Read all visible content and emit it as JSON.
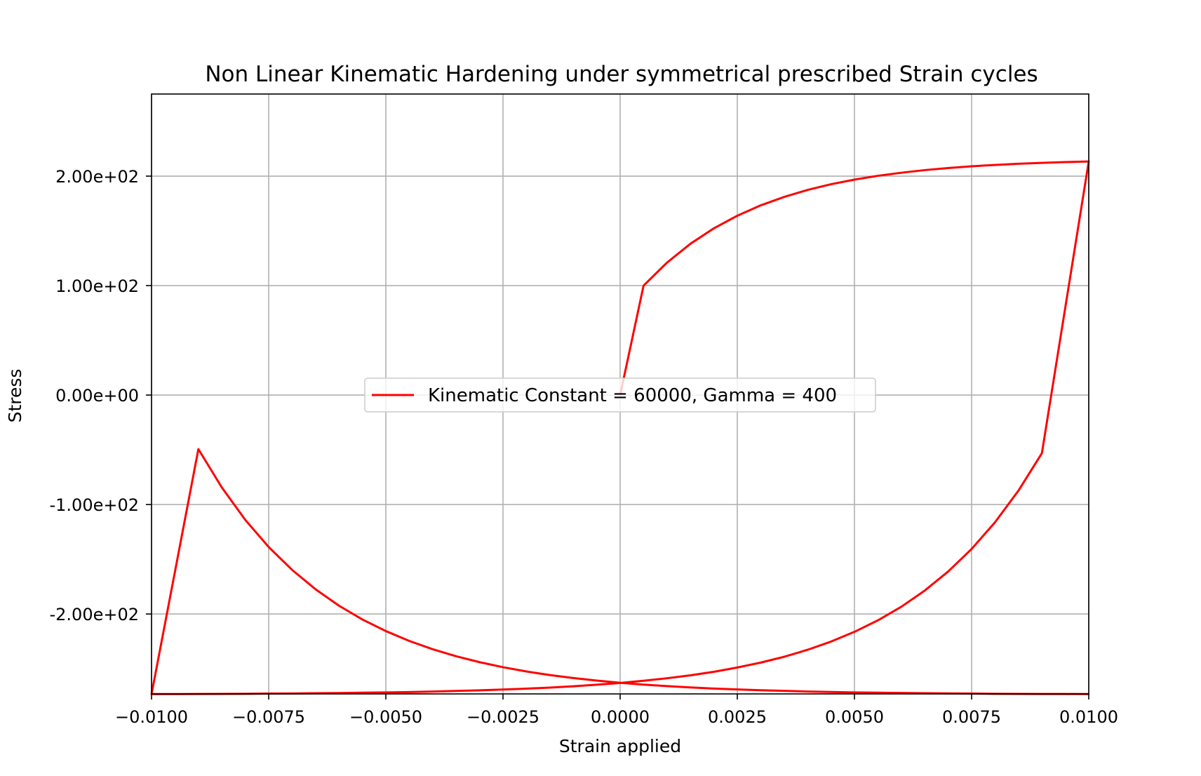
{
  "chart_data": {
    "type": "line",
    "title": "Non Linear Kinematic Hardening under symmetrical prescribed Strain cycles",
    "xlabel": "Strain applied",
    "ylabel": "Stress",
    "xlim": [
      -0.01,
      0.01
    ],
    "ylim": [
      -273,
      275
    ],
    "grid": true,
    "legend_position": "center",
    "x_ticks": [
      -0.01,
      -0.0075,
      -0.005,
      -0.0025,
      0.0,
      0.0025,
      0.005,
      0.0075,
      0.01
    ],
    "x_tick_labels": [
      "−0.0100",
      "−0.0075",
      "−0.0050",
      "−0.0025",
      "0.0000",
      "0.0025",
      "0.0050",
      "0.0075",
      "0.0100"
    ],
    "y_ticks": [
      -200,
      -100,
      0,
      100,
      200
    ],
    "y_tick_labels": [
      "-2.00e+02",
      "-1.00e+02",
      "0.00e+00",
      "1.00e+02",
      "2.00e+02"
    ],
    "series": [
      {
        "name": "Kinematic Constant = 60000, Gamma = 400",
        "color": "#ff0000",
        "x": [
          0.0,
          0.0005,
          0.001,
          0.0015,
          0.002,
          0.0025,
          0.003,
          0.0035,
          0.004,
          0.0045,
          0.005,
          0.0055,
          0.006,
          0.0065,
          0.007,
          0.0075,
          0.008,
          0.0085,
          0.009,
          0.0095,
          0.01,
          0.009,
          0.0085,
          0.008,
          0.0075,
          0.007,
          0.0065,
          0.006,
          0.0055,
          0.005,
          0.0045,
          0.004,
          0.0035,
          0.003,
          0.0025,
          0.002,
          0.0015,
          0.001,
          0.0005,
          0.0,
          -0.0005,
          -0.001,
          -0.0015,
          -0.002,
          -0.0025,
          -0.003,
          -0.0035,
          -0.004,
          -0.0045,
          -0.005,
          -0.0055,
          -0.006,
          -0.0065,
          -0.007,
          -0.0075,
          -0.008,
          -0.0085,
          -0.009,
          -0.0095,
          -0.01,
          -0.009,
          -0.0085,
          -0.008,
          -0.0075,
          -0.007,
          -0.0065,
          -0.006,
          -0.0055,
          -0.005,
          -0.0045,
          -0.004,
          -0.0035,
          -0.003,
          -0.0025,
          -0.002,
          -0.0015,
          -0.001,
          -0.0005,
          0.0,
          0.0005,
          0.001,
          0.0015,
          0.002,
          0.0025,
          0.003,
          0.0035,
          0.004,
          0.0045,
          0.005,
          0.0055,
          0.006,
          0.0065,
          0.007,
          0.0075,
          0.008,
          0.0085,
          0.009,
          0.0095,
          0.01
        ],
        "y": [
          0.0,
          100.0,
          121.0,
          138.2,
          152.3,
          163.8,
          173.3,
          181.0,
          187.4,
          192.6,
          196.8,
          200.3,
          203.1,
          205.5,
          207.4,
          209.0,
          210.2,
          211.3,
          212.1,
          212.8,
          213.4,
          -53.1,
          -87.3,
          -116.2,
          -140.6,
          -161.2,
          -178.6,
          -193.4,
          -205.8,
          -216.3,
          -225.2,
          -232.7,
          -239.1,
          -244.4,
          -248.9,
          -252.8,
          -256.0,
          -258.7,
          -261.0,
          -263.0,
          -264.6,
          -266.0,
          -267.2,
          -268.2,
          -269.0,
          -269.7,
          -270.3,
          -270.8,
          -271.3,
          -271.6,
          -271.9,
          -272.2,
          -272.4,
          -272.6,
          -272.7,
          -272.9,
          -273.0,
          -273.1,
          -273.2,
          -273.2,
          -49.4,
          -84.4,
          -114.0,
          -138.8,
          -159.7,
          -177.4,
          -192.4,
          -205.0,
          -215.6,
          -224.6,
          -232.2,
          -238.6,
          -244.0,
          -248.6,
          -252.5,
          -255.8,
          -258.5,
          -260.8,
          -262.8,
          -264.5,
          -265.9,
          -267.1,
          -268.1,
          -268.9,
          -269.6,
          -270.2,
          -270.8,
          -271.2,
          -271.6,
          -271.9,
          -272.1,
          -272.4,
          -272.5,
          -272.7,
          -272.9,
          -273.0,
          -273.1,
          -273.1,
          -273.2
        ]
      }
    ],
    "legend_entries": [
      "Kinematic Constant = 60000, Gamma = 400"
    ]
  }
}
